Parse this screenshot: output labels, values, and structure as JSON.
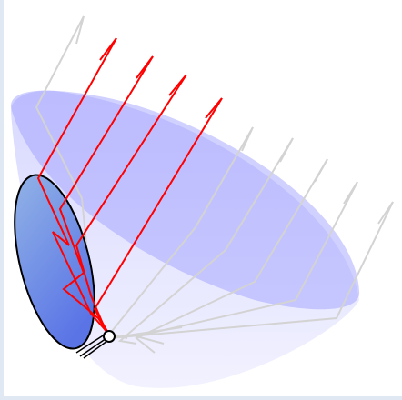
{
  "colors": {
    "background": "#ffffff",
    "edge": "#dfe8f3",
    "dish_fill_top": "#b9b9ff",
    "dish_fill_bottom": "#e6e6ff",
    "dish_rim": "#9a9aff",
    "mirror_top": "#93b5e6",
    "mirror_bottom": "#5a74e6",
    "ray_active": "#ff0000",
    "ray_inactive": "#d3d3d3",
    "outline": "#000000"
  },
  "scene": {
    "active_rays": 4,
    "inactive_rays": 6,
    "focal_marker": "circle",
    "arrowhead": "chevron"
  }
}
